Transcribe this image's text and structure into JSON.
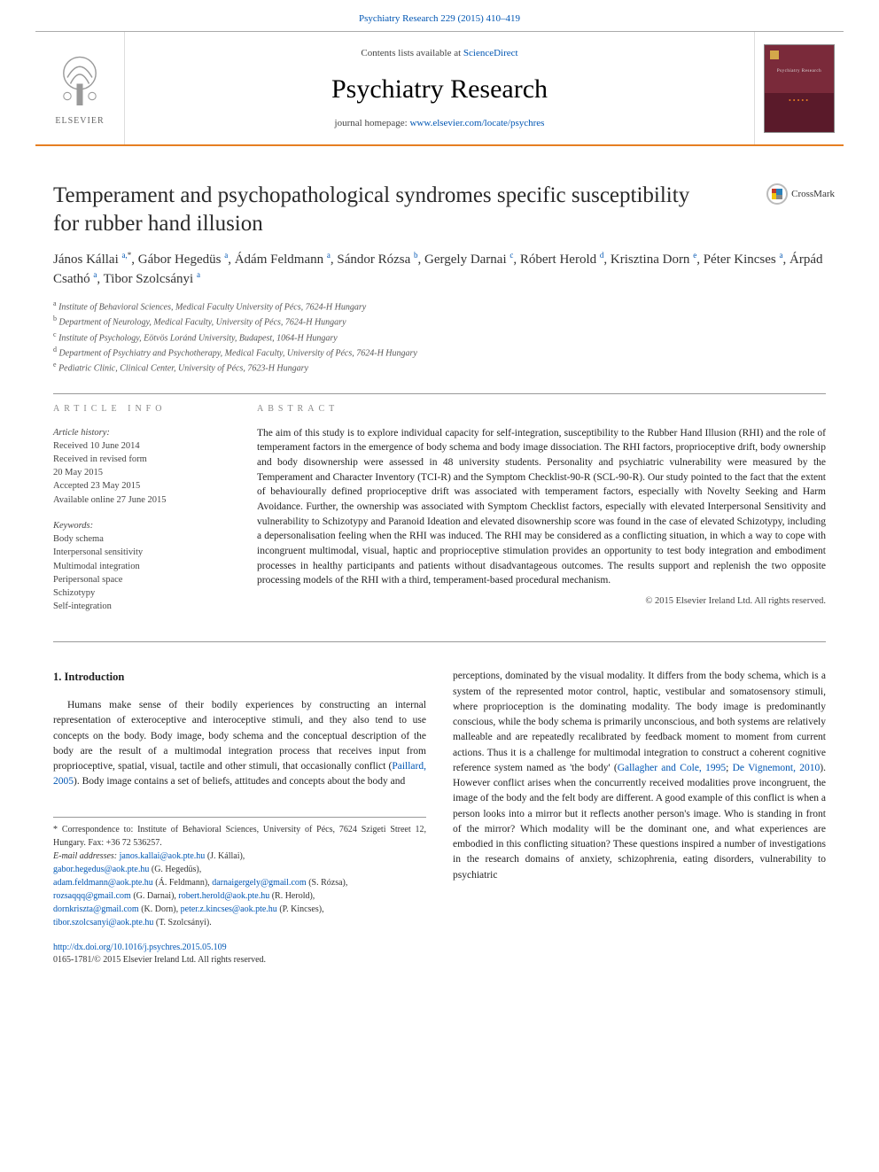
{
  "header": {
    "top_link_prefix": "Psychiatry Research 229 (2015) 410–419",
    "contents_prefix": "Contents lists available at ",
    "contents_link": "ScienceDirect",
    "journal_name": "Psychiatry Research",
    "homepage_prefix": "journal homepage: ",
    "homepage_url": "www.elsevier.com/locate/psychres",
    "elsevier_label": "ELSEVIER",
    "cover_title": "Psychiatry Research",
    "crossmark": "CrossMark"
  },
  "article": {
    "title": "Temperament and psychopathological syndromes specific susceptibility for rubber hand illusion",
    "authors_html": "János Kállai <sup class='sup'>a,</sup><sup class='sup star'>*</sup>, Gábor Hegedüs <sup class='sup'>a</sup>, Ádám Feldmann <sup class='sup'>a</sup>, Sándor Rózsa <sup class='sup'>b</sup>, Gergely Darnai <sup class='sup'>c</sup>, Róbert Herold <sup class='sup'>d</sup>, Krisztina Dorn <sup class='sup'>e</sup>, Péter Kincses <sup class='sup'>a</sup>, Árpád Csathó <sup class='sup'>a</sup>, Tibor Szolcsányi <sup class='sup'>a</sup>",
    "affiliations": [
      {
        "sup": "a",
        "text": "Institute of Behavioral Sciences, Medical Faculty University of Pécs, 7624-H Hungary"
      },
      {
        "sup": "b",
        "text": "Department of Neurology, Medical Faculty, University of Pécs, 7624-H Hungary"
      },
      {
        "sup": "c",
        "text": "Institute of Psychology, Eötvös Loránd University, Budapest, 1064-H Hungary"
      },
      {
        "sup": "d",
        "text": "Department of Psychiatry and Psychotherapy, Medical Faculty, University of Pécs, 7624-H Hungary"
      },
      {
        "sup": "e",
        "text": "Pediatric Clinic, Clinical Center, University of Pécs, 7623-H Hungary"
      }
    ]
  },
  "info": {
    "section_label": "ARTICLE INFO",
    "history_label": "Article history:",
    "history": [
      "Received 10 June 2014",
      "Received in revised form",
      "20 May 2015",
      "Accepted 23 May 2015",
      "Available online 27 June 2015"
    ],
    "keywords_label": "Keywords:",
    "keywords": [
      "Body schema",
      "Interpersonal sensitivity",
      "Multimodal integration",
      "Peripersonal space",
      "Schizotypy",
      "Self-integration"
    ]
  },
  "abstract": {
    "section_label": "ABSTRACT",
    "text": "The aim of this study is to explore individual capacity for self-integration, susceptibility to the Rubber Hand Illusion (RHI) and the role of temperament factors in the emergence of body schema and body image dissociation. The RHI factors, proprioceptive drift, body ownership and body disownership were assessed in 48 university students. Personality and psychiatric vulnerability were measured by the Temperament and Character Inventory (TCI-R) and the Symptom Checklist-90-R (SCL-90-R). Our study pointed to the fact that the extent of behaviourally defined proprioceptive drift was associated with temperament factors, especially with Novelty Seeking and Harm Avoidance. Further, the ownership was associated with Symptom Checklist factors, especially with elevated Interpersonal Sensitivity and vulnerability to Schizotypy and Paranoid Ideation and elevated disownership score was found in the case of elevated Schizotypy, including a depersonalisation feeling when the RHI was induced. The RHI may be considered as a conflicting situation, in which a way to cope with incongruent multimodal, visual, haptic and proprioceptive stimulation provides an opportunity to test body integration and embodiment processes in healthy participants and patients without disadvantageous outcomes. The results support and replenish the two opposite processing models of the RHI with a third, temperament-based procedural mechanism.",
    "copyright": "© 2015 Elsevier Ireland Ltd. All rights reserved."
  },
  "body": {
    "section_heading": "1. Introduction",
    "col1_p1_a": "Humans make sense of their bodily experiences by constructing an internal representation of exteroceptive and interoceptive stimuli, and they also tend to use concepts on the body. Body image, body schema and the conceptual description of the body are the result of a multimodal integration process that receives input from proprioceptive, spatial, visual, tactile and other stimuli, that occasionally conflict (",
    "col1_link1": "Paillard, 2005",
    "col1_p1_b": "). Body image contains a set of beliefs, attitudes and concepts about the body and",
    "col2_p1_a": "perceptions, dominated by the visual modality. It differs from the body schema, which is a system of the represented motor control, haptic, vestibular and somatosensory stimuli, where proprioception is the dominating modality. The body image is predominantly conscious, while the body schema is primarily unconscious, and both systems are relatively malleable and are repeatedly recalibrated by feedback moment to moment from current actions. Thus it is a challenge for multimodal integration to construct a coherent cognitive reference system named as 'the body' (",
    "col2_link1": "Gallagher and Cole, 1995",
    "col2_sep1": "; ",
    "col2_link2": "De Vignemont, 2010",
    "col2_p1_b": "). However conflict arises when the concurrently received modalities prove incongruent, the image of the body and the felt body are different. A good example of this conflict is when a person looks into a mirror but it reflects another person's image. Who is standing in front of the mirror? Which modality will be the dominant one, and what experiences are embodied in this conflicting situation? These questions inspired a number of investigations in the research domains of anxiety, schizophrenia, eating disorders, vulnerability to psychiatric"
  },
  "footnotes": {
    "corr_prefix": "* Correspondence to: Institute of Behavioral Sciences, University of Pécs, 7624 Szigeti Street 12, Hungary. Fax: +36 72 536257.",
    "email_label": "E-mail addresses: ",
    "emails": [
      {
        "addr": "janos.kallai@aok.pte.hu",
        "who": " (J. Kállai),"
      },
      {
        "addr": "gabor.hegedus@aok.pte.hu",
        "who": " (G. Hegedüs),"
      },
      {
        "addr": "adam.feldmann@aok.pte.hu",
        "who": " (Á. Feldmann), "
      },
      {
        "addr": "darnaigergely@gmail.com",
        "who": " (S. Rózsa),"
      },
      {
        "addr": "rozsaqqq@gmail.com",
        "who": " (G. Darnai), "
      },
      {
        "addr": "robert.herold@aok.pte.hu",
        "who": " (R. Herold),"
      },
      {
        "addr": "dornkriszta@gmail.com",
        "who": " (K. Dorn), "
      },
      {
        "addr": "peter.z.kincses@aok.pte.hu",
        "who": " (P. Kincses),"
      },
      {
        "addr": "tibor.szolcsanyi@aok.pte.hu",
        "who": " (T. Szolcsányi)."
      }
    ]
  },
  "doi": {
    "url": "http://dx.doi.org/10.1016/j.psychres.2015.05.109",
    "issn_line": "0165-1781/© 2015 Elsevier Ireland Ltd. All rights reserved."
  },
  "colors": {
    "link": "#0056b3",
    "accent_border": "#e67e22",
    "text": "#222222",
    "muted": "#555555"
  }
}
